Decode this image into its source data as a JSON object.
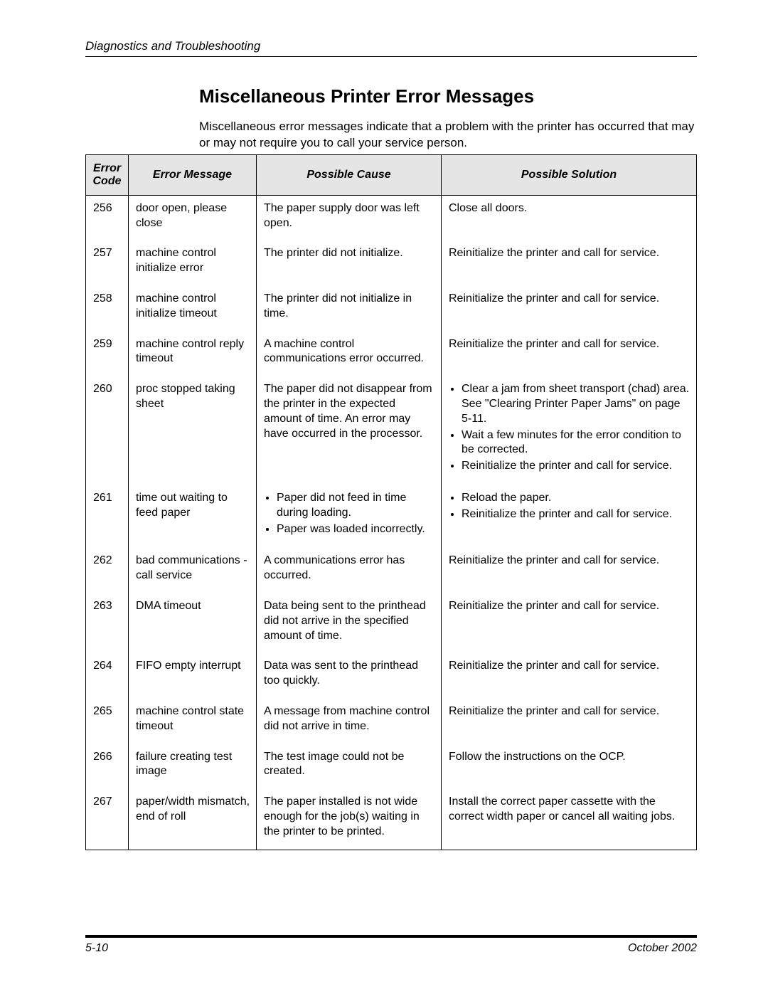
{
  "header": {
    "section": "Diagnostics and Troubleshooting"
  },
  "title": "Miscellaneous Printer Error Messages",
  "intro": "Miscellaneous error messages indicate that a problem with the printer has occurred that may or may not require you to call your service person.",
  "table": {
    "columns": [
      "Error Code",
      "Error Message",
      "Possible Cause",
      "Possible Solution"
    ],
    "rows": [
      {
        "code": "256",
        "message": "door open, please close",
        "cause": "The paper supply door was left open.",
        "solution": "Close all doors."
      },
      {
        "code": "257",
        "message": "machine control initialize error",
        "cause": "The printer did not initialize.",
        "solution": "Reinitialize the printer and call for service."
      },
      {
        "code": "258",
        "message": "machine control initialize timeout",
        "cause": "The printer did not initialize in time.",
        "solution": "Reinitialize the printer and call for service."
      },
      {
        "code": "259",
        "message": "machine control reply timeout",
        "cause": "A machine control communications error occurred.",
        "solution": "Reinitialize the printer and call for service."
      },
      {
        "code": "260",
        "message": "proc stopped taking sheet",
        "cause": "The paper did not disappear from the printer in the expected amount of time. An error may have occurred in the processor.",
        "solution_list": [
          "Clear a jam from sheet transport (chad) area. See \"Clearing Printer Paper Jams\" on page 5-11.",
          "Wait a few minutes for the error condition to be corrected.",
          "Reinitialize the printer and call for service."
        ]
      },
      {
        "code": "261",
        "message": "time out waiting to feed paper",
        "cause_list": [
          "Paper did not feed in time during loading.",
          "Paper was loaded incorrectly."
        ],
        "solution_list": [
          "Reload the paper.",
          "Reinitialize the printer and call for service."
        ]
      },
      {
        "code": "262",
        "message": "bad communications - call service",
        "cause": "A communications error has occurred.",
        "solution": "Reinitialize the printer and call for service."
      },
      {
        "code": "263",
        "message": "DMA timeout",
        "cause": "Data being sent to the printhead did not arrive in the specified amount of time.",
        "solution": "Reinitialize the printer and call for service."
      },
      {
        "code": "264",
        "message": "FIFO empty interrupt",
        "cause": "Data was sent to the printhead too quickly.",
        "solution": "Reinitialize the printer and call for service."
      },
      {
        "code": "265",
        "message": "machine control state timeout",
        "cause": "A message from machine control did not arrive in time.",
        "solution": "Reinitialize the printer and call for service."
      },
      {
        "code": "266",
        "message": "failure creating test image",
        "cause": "The test image could not be created.",
        "solution": "Follow the instructions on the OCP."
      },
      {
        "code": "267",
        "message": "paper/width mismatch, end of roll",
        "cause": "The paper installed is not wide enough for the job(s) waiting in the printer to be printed.",
        "solution": "Install the correct paper cassette with the correct width paper or cancel all waiting jobs."
      }
    ]
  },
  "footer": {
    "page": "5-10",
    "date": "October 2002"
  }
}
